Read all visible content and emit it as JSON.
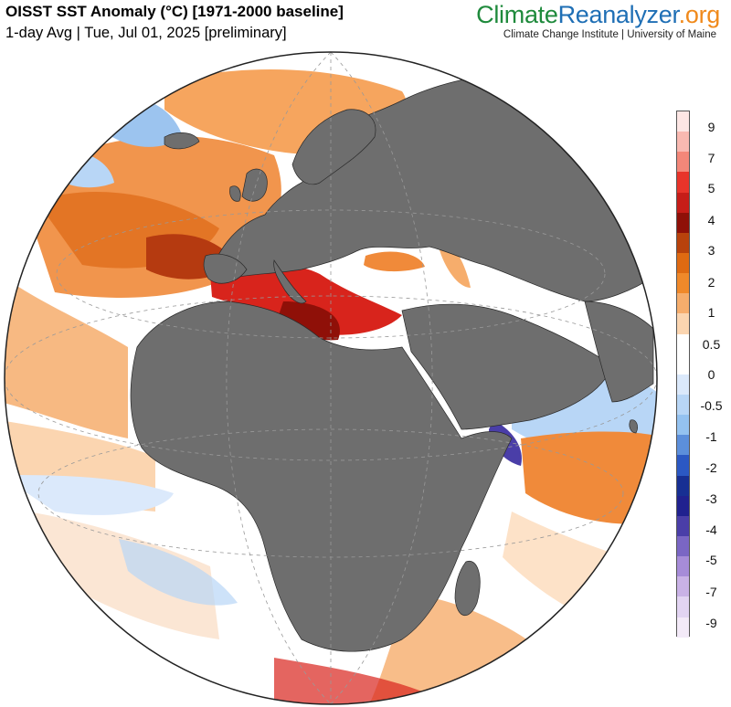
{
  "header": {
    "title": "OISST SST Anomaly (°C) [1971-2000 baseline]",
    "subtitle": "1-day Avg | Tue, Jul 01, 2025 [preliminary]"
  },
  "brand": {
    "part1": "Climate",
    "part2": "Reanalyzer",
    "part3": ".org",
    "institution": "Climate Change Institute | University of Maine"
  },
  "map": {
    "projection": "orthographic globe centered on Africa / Mediterranean",
    "land_color": "#6e6e6e",
    "ocean_warm_color": "#f08a3a",
    "ocean_hot_color": "#c61d18",
    "ocean_cool_color": "#9cc4ef"
  },
  "colorbar": {
    "labels": [
      "9",
      "7",
      "5",
      "4",
      "3",
      "2",
      "1",
      "0.5",
      "0",
      "-0.5",
      "-1",
      "-2",
      "-3",
      "-4",
      "-5",
      "-7",
      "-9"
    ],
    "colors": [
      "#fde6e4",
      "#f9b9b1",
      "#f38779",
      "#e8342a",
      "#c61d18",
      "#8f1008",
      "#b8420c",
      "#df6a12",
      "#f0892a",
      "#f6ad6c",
      "#fbd5b0",
      "#ffffff",
      "#ffffff",
      "#dbe9fb",
      "#b8d6f6",
      "#94c2f0",
      "#5c8fdb",
      "#2b58c3",
      "#172f93",
      "#20218f",
      "#4a3ea8",
      "#7a66c4",
      "#a68cd8",
      "#c9b2e6",
      "#e2d4f2",
      "#f3eaf8"
    ]
  }
}
